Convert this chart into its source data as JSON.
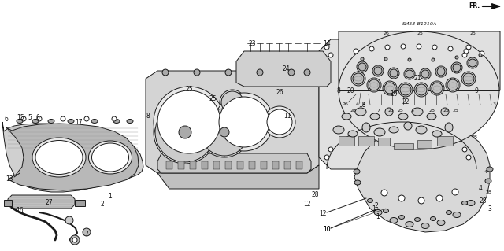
{
  "fig_width": 6.4,
  "fig_height": 3.19,
  "dpi": 100,
  "background_color": "#ffffff",
  "line_color": "#1a1a1a",
  "text_color": "#111111",
  "diagram_ref": "SM53-B1210A",
  "gray_fill": "#c8c8c8",
  "light_gray": "#e0e0e0",
  "dark_gray": "#888888",
  "mid_gray": "#aaaaaa"
}
